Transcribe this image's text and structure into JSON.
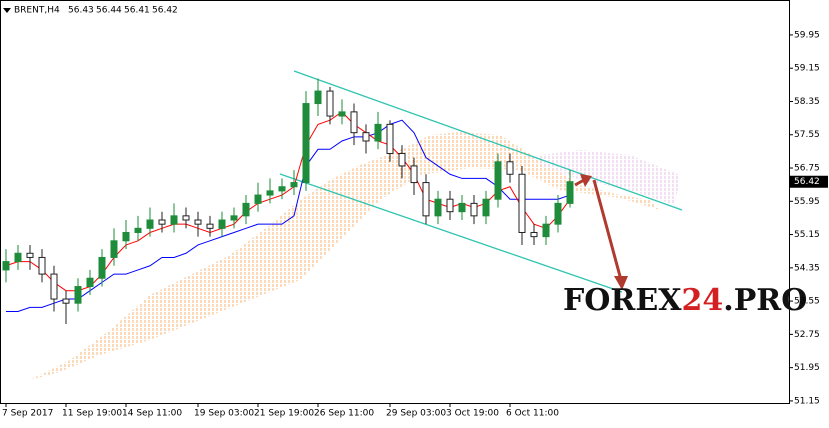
{
  "chart_data": {
    "type": "candlestick",
    "header": {
      "symbol": "BRENT,H4",
      "quote": [
        56.43,
        56.44,
        56.41,
        56.42
      ]
    },
    "categories": [
      "7 Sep 2017",
      null,
      null,
      null,
      null,
      "11 Sep 19:00",
      null,
      null,
      null,
      null,
      "14 Sep 11:00",
      null,
      null,
      null,
      null,
      null,
      "19 Sep 03:00",
      null,
      null,
      null,
      null,
      "21 Sep 19:00",
      null,
      null,
      null,
      null,
      "26 Sep 11:00",
      null,
      null,
      null,
      null,
      null,
      "29 Sep 03:00",
      null,
      null,
      null,
      null,
      "3 Oct 19:00",
      null,
      null,
      null,
      null,
      "6 Oct 11:00",
      null,
      null,
      null,
      null,
      null
    ],
    "open": [
      54.3,
      54.5,
      54.7,
      54.6,
      54.2,
      53.6,
      53.5,
      53.9,
      54.1,
      54.6,
      55.0,
      55.2,
      55.3,
      55.5,
      55.4,
      55.6,
      55.5,
      55.4,
      55.3,
      55.5,
      55.6,
      55.9,
      56.1,
      56.2,
      56.3,
      56.4,
      58.3,
      58.6,
      58.0,
      58.1,
      57.6,
      57.4,
      57.8,
      57.1,
      56.8,
      56.4,
      55.6,
      56.0,
      55.7,
      55.9,
      55.6,
      56.0,
      56.9,
      56.6,
      55.2,
      55.1,
      55.4,
      55.9
    ],
    "high": [
      54.8,
      54.9,
      54.9,
      54.8,
      54.4,
      53.8,
      54.1,
      54.3,
      54.8,
      55.3,
      55.5,
      55.6,
      55.8,
      55.7,
      55.9,
      55.8,
      55.7,
      55.6,
      55.7,
      55.8,
      56.1,
      56.4,
      56.5,
      56.5,
      56.7,
      58.6,
      58.9,
      58.7,
      58.4,
      58.3,
      57.8,
      58.1,
      57.9,
      57.3,
      57.0,
      56.6,
      56.2,
      56.2,
      56.1,
      56.1,
      56.2,
      57.1,
      57.1,
      56.8,
      55.4,
      55.6,
      56.1,
      56.7
    ],
    "low": [
      54.0,
      54.3,
      54.3,
      54.0,
      53.3,
      53.0,
      53.3,
      53.7,
      53.9,
      54.4,
      54.8,
      55.0,
      55.1,
      55.2,
      55.2,
      55.3,
      55.1,
      55.1,
      55.1,
      55.3,
      55.4,
      55.7,
      55.9,
      56.0,
      56.1,
      56.2,
      58.0,
      57.8,
      57.8,
      57.3,
      57.1,
      57.2,
      56.9,
      56.5,
      56.1,
      55.4,
      55.4,
      55.5,
      55.5,
      55.4,
      55.4,
      55.8,
      56.4,
      54.9,
      54.9,
      54.9,
      55.2,
      55.8
    ],
    "close": [
      54.5,
      54.7,
      54.6,
      54.2,
      53.6,
      53.5,
      53.9,
      54.1,
      54.6,
      55.0,
      55.2,
      55.3,
      55.5,
      55.4,
      55.6,
      55.5,
      55.4,
      55.3,
      55.5,
      55.6,
      55.9,
      56.1,
      56.2,
      56.3,
      56.4,
      58.3,
      58.6,
      58.0,
      58.1,
      57.6,
      57.4,
      57.8,
      57.1,
      56.8,
      56.4,
      55.6,
      56.0,
      55.7,
      55.9,
      55.6,
      56.0,
      56.9,
      56.6,
      55.2,
      55.1,
      55.4,
      55.9,
      56.42
    ],
    "bull_color": "#1e8c3a",
    "bear_color": "#222222",
    "lines": [
      {
        "color": "#0000ff",
        "values": [
          53.3,
          53.3,
          53.4,
          53.4,
          53.5,
          53.6,
          53.6,
          53.8,
          54.0,
          54.2,
          54.2,
          54.3,
          54.4,
          54.6,
          54.6,
          54.7,
          54.9,
          55.0,
          55.1,
          55.2,
          55.3,
          55.4,
          55.4,
          55.4,
          55.6,
          56.8,
          57.2,
          57.2,
          57.4,
          57.5,
          57.5,
          57.6,
          57.8,
          57.9,
          57.6,
          57.0,
          56.8,
          56.6,
          56.5,
          56.5,
          56.5,
          56.3,
          56.0,
          56.0,
          56.0,
          56.0,
          56.0,
          56.1
        ]
      },
      {
        "color": "#ff0000",
        "values": [
          54.4,
          54.5,
          54.5,
          54.3,
          54.0,
          53.8,
          53.8,
          53.9,
          54.2,
          54.6,
          54.9,
          55.0,
          55.2,
          55.3,
          55.4,
          55.4,
          55.3,
          55.2,
          55.3,
          55.4,
          55.7,
          55.9,
          56.0,
          56.1,
          56.3,
          57.3,
          57.8,
          57.9,
          58.1,
          57.8,
          57.6,
          57.4,
          57.3,
          57.0,
          56.6,
          56.0,
          55.9,
          55.8,
          55.9,
          55.8,
          55.9,
          56.2,
          56.3,
          55.8,
          55.4,
          55.3,
          55.6,
          56.0
        ]
      }
    ],
    "last_price": 56.42,
    "ylim": [
      51.1,
      60.79
    ],
    "yticks": [
      59.95,
      59.15,
      58.35,
      57.55,
      56.75,
      55.95,
      55.15,
      54.35,
      53.55,
      52.75,
      51.95,
      51.15
    ],
    "watermark": [
      "FOREX",
      "24",
      ".PRO"
    ]
  }
}
